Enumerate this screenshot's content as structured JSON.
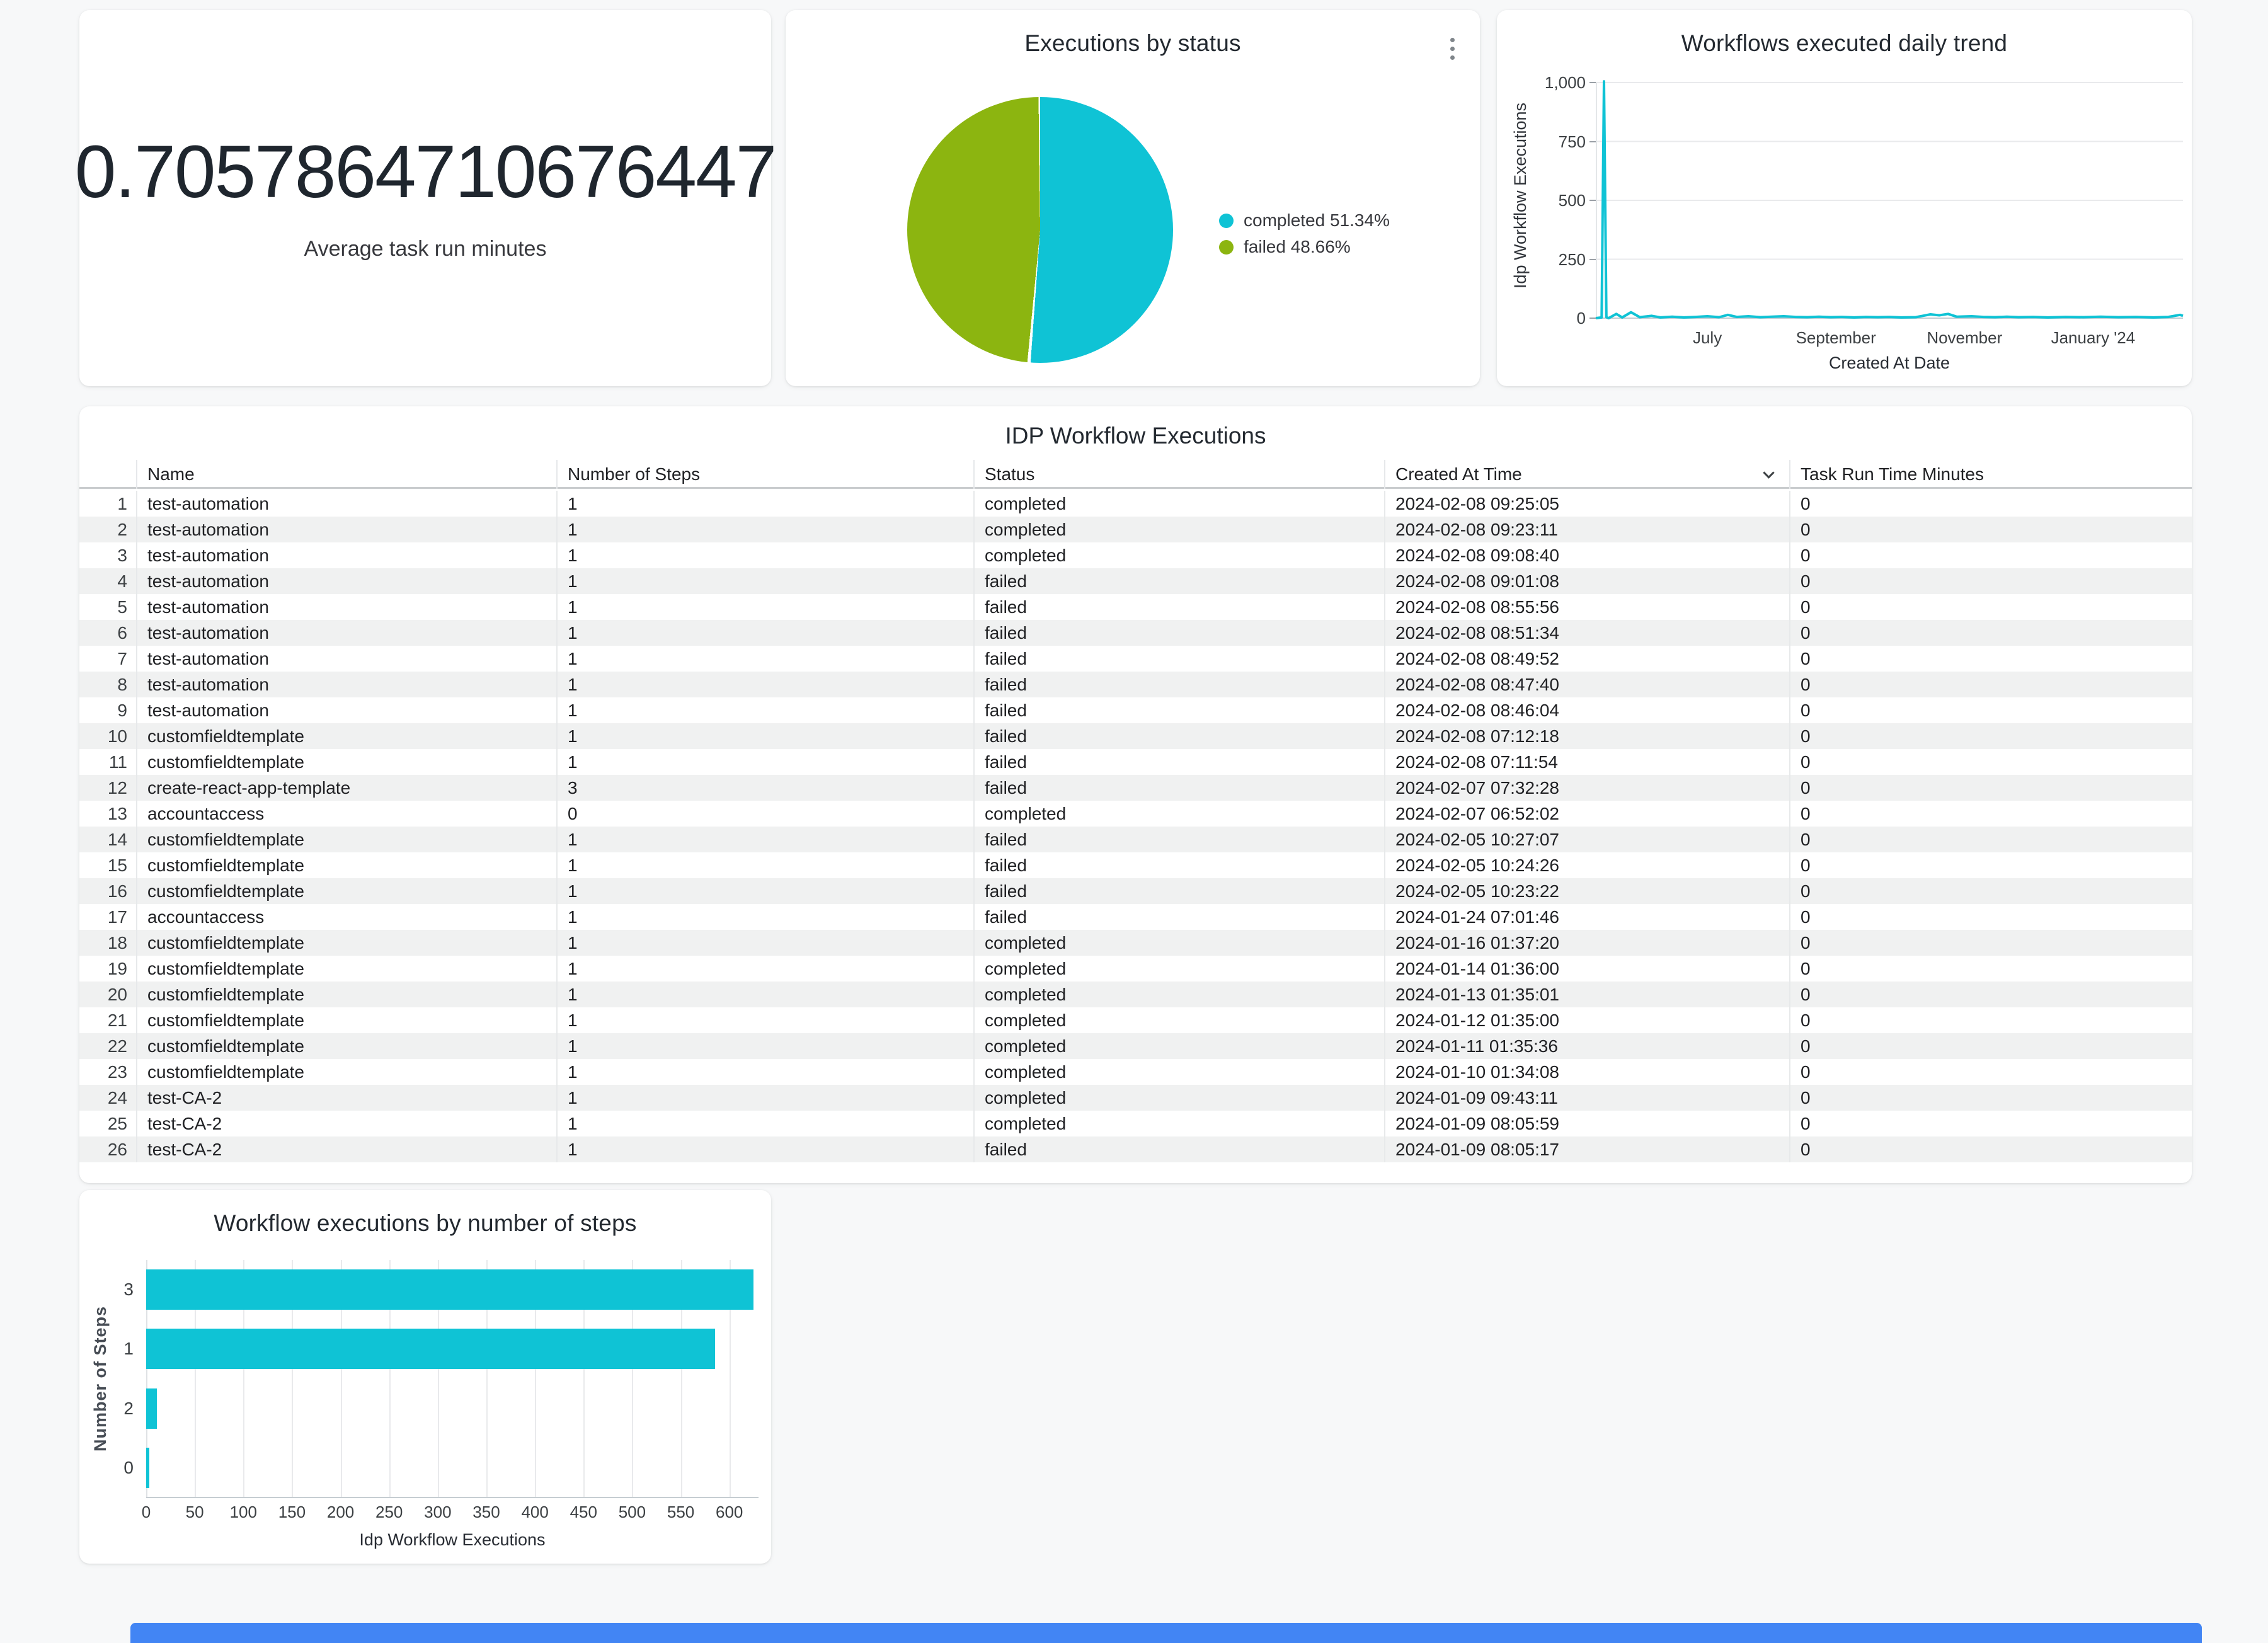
{
  "colors": {
    "accent_cyan": "#0FC3D5",
    "accent_green": "#8CB510",
    "blue_bar": "#4285F4"
  },
  "scorecard": {
    "value": "0.7057864710676447",
    "label": "Average task run minutes"
  },
  "chart_data": [
    {
      "type": "pie",
      "title": "Executions by status",
      "slices": [
        {
          "label": "completed",
          "pct": 51.34,
          "color": "#0FC3D5"
        },
        {
          "label": "failed",
          "pct": 48.66,
          "color": "#8CB510"
        }
      ],
      "legend_position": "right"
    },
    {
      "type": "line",
      "title": "Workflows executed daily trend",
      "xlabel": "Created At Date",
      "ylabel": "Idp Workflow Executions",
      "ylim": [
        0,
        1000
      ],
      "yticks": [
        0,
        250,
        500,
        750,
        1000
      ],
      "ytick_labels": [
        "0",
        "250",
        "500",
        "750",
        "1,000"
      ],
      "xticks": [
        {
          "label": "July",
          "pos": 0.19
        },
        {
          "label": "September",
          "pos": 0.409
        },
        {
          "label": "November",
          "pos": 0.628
        },
        {
          "label": "January '24",
          "pos": 0.847
        }
      ],
      "color": "#0FC3D5",
      "points": [
        [
          0.0,
          0
        ],
        [
          0.01,
          3
        ],
        [
          0.014,
          1005
        ],
        [
          0.018,
          4
        ],
        [
          0.022,
          0
        ],
        [
          0.035,
          18
        ],
        [
          0.045,
          3
        ],
        [
          0.06,
          25
        ],
        [
          0.075,
          4
        ],
        [
          0.095,
          10
        ],
        [
          0.11,
          3
        ],
        [
          0.13,
          6
        ],
        [
          0.15,
          3
        ],
        [
          0.17,
          5
        ],
        [
          0.19,
          8
        ],
        [
          0.21,
          4
        ],
        [
          0.225,
          14
        ],
        [
          0.24,
          5
        ],
        [
          0.26,
          8
        ],
        [
          0.28,
          4
        ],
        [
          0.3,
          6
        ],
        [
          0.32,
          8
        ],
        [
          0.34,
          5
        ],
        [
          0.36,
          4
        ],
        [
          0.38,
          6
        ],
        [
          0.4,
          4
        ],
        [
          0.42,
          5
        ],
        [
          0.44,
          3
        ],
        [
          0.46,
          5
        ],
        [
          0.48,
          4
        ],
        [
          0.5,
          5
        ],
        [
          0.52,
          3
        ],
        [
          0.545,
          4
        ],
        [
          0.57,
          16
        ],
        [
          0.585,
          12
        ],
        [
          0.6,
          18
        ],
        [
          0.615,
          6
        ],
        [
          0.64,
          8
        ],
        [
          0.66,
          5
        ],
        [
          0.68,
          4
        ],
        [
          0.7,
          6
        ],
        [
          0.72,
          4
        ],
        [
          0.745,
          5
        ],
        [
          0.77,
          3
        ],
        [
          0.8,
          5
        ],
        [
          0.83,
          4
        ],
        [
          0.86,
          6
        ],
        [
          0.89,
          4
        ],
        [
          0.92,
          5
        ],
        [
          0.95,
          3
        ],
        [
          0.975,
          5
        ],
        [
          0.995,
          14
        ],
        [
          1.0,
          10
        ]
      ]
    },
    {
      "type": "bar",
      "title": "Workflow executions by number of steps",
      "xlabel": "Idp Workflow Executions",
      "ylabel": "Number of Steps",
      "categories": [
        "3",
        "1",
        "2",
        "0"
      ],
      "values": [
        625,
        585,
        11,
        3
      ],
      "xlim": [
        0,
        630
      ],
      "xticks": [
        0,
        50,
        100,
        150,
        200,
        250,
        300,
        350,
        400,
        450,
        500,
        550,
        600
      ],
      "color": "#0FC3D5",
      "grid": true
    }
  ],
  "table": {
    "title": "IDP Workflow Executions",
    "columns": [
      "Name",
      "Number of Steps",
      "Status",
      "Created At Time",
      "Task Run Time Minutes"
    ],
    "sorted_by": "Created At Time",
    "sort_direction": "desc",
    "rows": [
      [
        "1",
        "test-automation",
        "1",
        "completed",
        "2024-02-08 09:25:05",
        "0"
      ],
      [
        "2",
        "test-automation",
        "1",
        "completed",
        "2024-02-08 09:23:11",
        "0"
      ],
      [
        "3",
        "test-automation",
        "1",
        "completed",
        "2024-02-08 09:08:40",
        "0"
      ],
      [
        "4",
        "test-automation",
        "1",
        "failed",
        "2024-02-08 09:01:08",
        "0"
      ],
      [
        "5",
        "test-automation",
        "1",
        "failed",
        "2024-02-08 08:55:56",
        "0"
      ],
      [
        "6",
        "test-automation",
        "1",
        "failed",
        "2024-02-08 08:51:34",
        "0"
      ],
      [
        "7",
        "test-automation",
        "1",
        "failed",
        "2024-02-08 08:49:52",
        "0"
      ],
      [
        "8",
        "test-automation",
        "1",
        "failed",
        "2024-02-08 08:47:40",
        "0"
      ],
      [
        "9",
        "test-automation",
        "1",
        "failed",
        "2024-02-08 08:46:04",
        "0"
      ],
      [
        "10",
        "customfieldtemplate",
        "1",
        "failed",
        "2024-02-08 07:12:18",
        "0"
      ],
      [
        "11",
        "customfieldtemplate",
        "1",
        "failed",
        "2024-02-08 07:11:54",
        "0"
      ],
      [
        "12",
        "create-react-app-template",
        "3",
        "failed",
        "2024-02-07 07:32:28",
        "0"
      ],
      [
        "13",
        "accountaccess",
        "0",
        "completed",
        "2024-02-07 06:52:02",
        "0"
      ],
      [
        "14",
        "customfieldtemplate",
        "1",
        "failed",
        "2024-02-05 10:27:07",
        "0"
      ],
      [
        "15",
        "customfieldtemplate",
        "1",
        "failed",
        "2024-02-05 10:24:26",
        "0"
      ],
      [
        "16",
        "customfieldtemplate",
        "1",
        "failed",
        "2024-02-05 10:23:22",
        "0"
      ],
      [
        "17",
        "accountaccess",
        "1",
        "failed",
        "2024-01-24 07:01:46",
        "0"
      ],
      [
        "18",
        "customfieldtemplate",
        "1",
        "completed",
        "2024-01-16 01:37:20",
        "0"
      ],
      [
        "19",
        "customfieldtemplate",
        "1",
        "completed",
        "2024-01-14 01:36:00",
        "0"
      ],
      [
        "20",
        "customfieldtemplate",
        "1",
        "completed",
        "2024-01-13 01:35:01",
        "0"
      ],
      [
        "21",
        "customfieldtemplate",
        "1",
        "completed",
        "2024-01-12 01:35:00",
        "0"
      ],
      [
        "22",
        "customfieldtemplate",
        "1",
        "completed",
        "2024-01-11 01:35:36",
        "0"
      ],
      [
        "23",
        "customfieldtemplate",
        "1",
        "completed",
        "2024-01-10 01:34:08",
        "0"
      ],
      [
        "24",
        "test-CA-2",
        "1",
        "completed",
        "2024-01-09 09:43:11",
        "0"
      ],
      [
        "25",
        "test-CA-2",
        "1",
        "completed",
        "2024-01-09 08:05:59",
        "0"
      ],
      [
        "26",
        "test-CA-2",
        "1",
        "failed",
        "2024-01-09 08:05:17",
        "0"
      ]
    ]
  }
}
